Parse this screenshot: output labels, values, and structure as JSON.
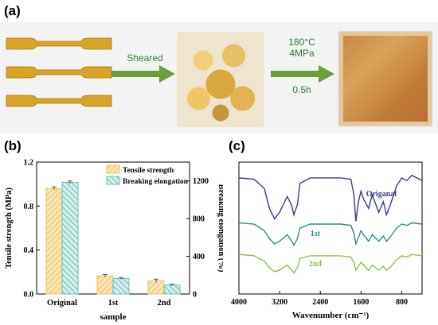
{
  "panel_labels": {
    "a": "(a)",
    "b": "(b)",
    "c": "(c)"
  },
  "process": {
    "step1_label": "Sheared",
    "step2_labels": [
      "180°C",
      "4MPa",
      "0.5h"
    ]
  },
  "colors": {
    "tensile": "#f0c060",
    "elongation": "#6bbfb8",
    "arrow": "#6a9f3a",
    "specimen": "#d9a326",
    "ftir_original": "#3a3a8c",
    "ftir_1st": "#2e8b8b",
    "ftir_2nd": "#8bc34a"
  },
  "chart_data": [
    {
      "type": "bar",
      "categories": [
        "Original",
        "1st",
        "2nd"
      ],
      "series": [
        {
          "name": "Tensile strength",
          "axis": "left",
          "values": [
            0.96,
            0.165,
            0.12
          ],
          "errors": [
            0.015,
            0.012,
            0.015
          ]
        },
        {
          "name": "Breaking elongation",
          "axis": "right",
          "values": [
            1185,
            165,
            95
          ],
          "errors": [
            15,
            10,
            10
          ]
        }
      ],
      "xlabel": "sample",
      "ylabel": "Tensile strength (MPa)",
      "ylabel_right": "Breaking elongation (%)",
      "ylim": [
        0,
        1.2
      ],
      "ylim_right": [
        0,
        1400
      ],
      "yticks": [
        "0.0",
        "0.4",
        "0.8",
        "1.2"
      ],
      "yticks_right": [
        "0",
        "400",
        "800",
        "1200"
      ],
      "legend": "top-right"
    },
    {
      "type": "line",
      "xlabel": "Wavenumber (cm⁻¹)",
      "xlim": [
        4000,
        400
      ],
      "xticks": [
        "4000",
        "3200",
        "2400",
        "1600",
        "800"
      ],
      "series": [
        {
          "name": "Origanal",
          "points": [
            [
              4000,
              0.12
            ],
            [
              3700,
              0.13
            ],
            [
              3500,
              0.2
            ],
            [
              3400,
              0.35
            ],
            [
              3300,
              0.43
            ],
            [
              3200,
              0.38
            ],
            [
              3050,
              0.26
            ],
            [
              2960,
              0.33
            ],
            [
              2920,
              0.4
            ],
            [
              2850,
              0.32
            ],
            [
              2800,
              0.16
            ],
            [
              2600,
              0.12
            ],
            [
              2000,
              0.12
            ],
            [
              1800,
              0.13
            ],
            [
              1740,
              0.25
            ],
            [
              1700,
              0.45
            ],
            [
              1650,
              0.3
            ],
            [
              1600,
              0.22
            ],
            [
              1550,
              0.28
            ],
            [
              1450,
              0.35
            ],
            [
              1380,
              0.25
            ],
            [
              1250,
              0.38
            ],
            [
              1160,
              0.3
            ],
            [
              1100,
              0.4
            ],
            [
              1030,
              0.33
            ],
            [
              900,
              0.18
            ],
            [
              800,
              0.12
            ],
            [
              700,
              0.14
            ],
            [
              600,
              0.1
            ],
            [
              400,
              0.14
            ]
          ]
        },
        {
          "name": "1st",
          "points": [
            [
              4000,
              0.46
            ],
            [
              3700,
              0.47
            ],
            [
              3500,
              0.52
            ],
            [
              3400,
              0.58
            ],
            [
              3300,
              0.62
            ],
            [
              3200,
              0.6
            ],
            [
              3050,
              0.55
            ],
            [
              2960,
              0.6
            ],
            [
              2920,
              0.63
            ],
            [
              2850,
              0.58
            ],
            [
              2800,
              0.5
            ],
            [
              2600,
              0.47
            ],
            [
              2000,
              0.47
            ],
            [
              1800,
              0.48
            ],
            [
              1740,
              0.54
            ],
            [
              1700,
              0.62
            ],
            [
              1650,
              0.57
            ],
            [
              1600,
              0.52
            ],
            [
              1550,
              0.55
            ],
            [
              1450,
              0.6
            ],
            [
              1380,
              0.55
            ],
            [
              1250,
              0.6
            ],
            [
              1160,
              0.56
            ],
            [
              1100,
              0.6
            ],
            [
              1030,
              0.57
            ],
            [
              900,
              0.5
            ],
            [
              800,
              0.47
            ],
            [
              700,
              0.48
            ],
            [
              600,
              0.46
            ],
            [
              400,
              0.47
            ]
          ]
        },
        {
          "name": "2nd",
          "points": [
            [
              4000,
              0.7
            ],
            [
              3700,
              0.71
            ],
            [
              3500,
              0.75
            ],
            [
              3400,
              0.8
            ],
            [
              3300,
              0.83
            ],
            [
              3200,
              0.82
            ],
            [
              3050,
              0.78
            ],
            [
              2960,
              0.82
            ],
            [
              2920,
              0.84
            ],
            [
              2850,
              0.8
            ],
            [
              2800,
              0.73
            ],
            [
              2600,
              0.71
            ],
            [
              2000,
              0.71
            ],
            [
              1800,
              0.72
            ],
            [
              1740,
              0.76
            ],
            [
              1700,
              0.82
            ],
            [
              1650,
              0.79
            ],
            [
              1600,
              0.76
            ],
            [
              1550,
              0.78
            ],
            [
              1450,
              0.82
            ],
            [
              1380,
              0.78
            ],
            [
              1250,
              0.82
            ],
            [
              1160,
              0.79
            ],
            [
              1100,
              0.82
            ],
            [
              1030,
              0.8
            ],
            [
              900,
              0.74
            ],
            [
              800,
              0.71
            ],
            [
              700,
              0.72
            ],
            [
              600,
              0.7
            ],
            [
              400,
              0.71
            ]
          ]
        }
      ],
      "series_labels": [
        "Origanal",
        "1st",
        "2nd"
      ]
    }
  ]
}
